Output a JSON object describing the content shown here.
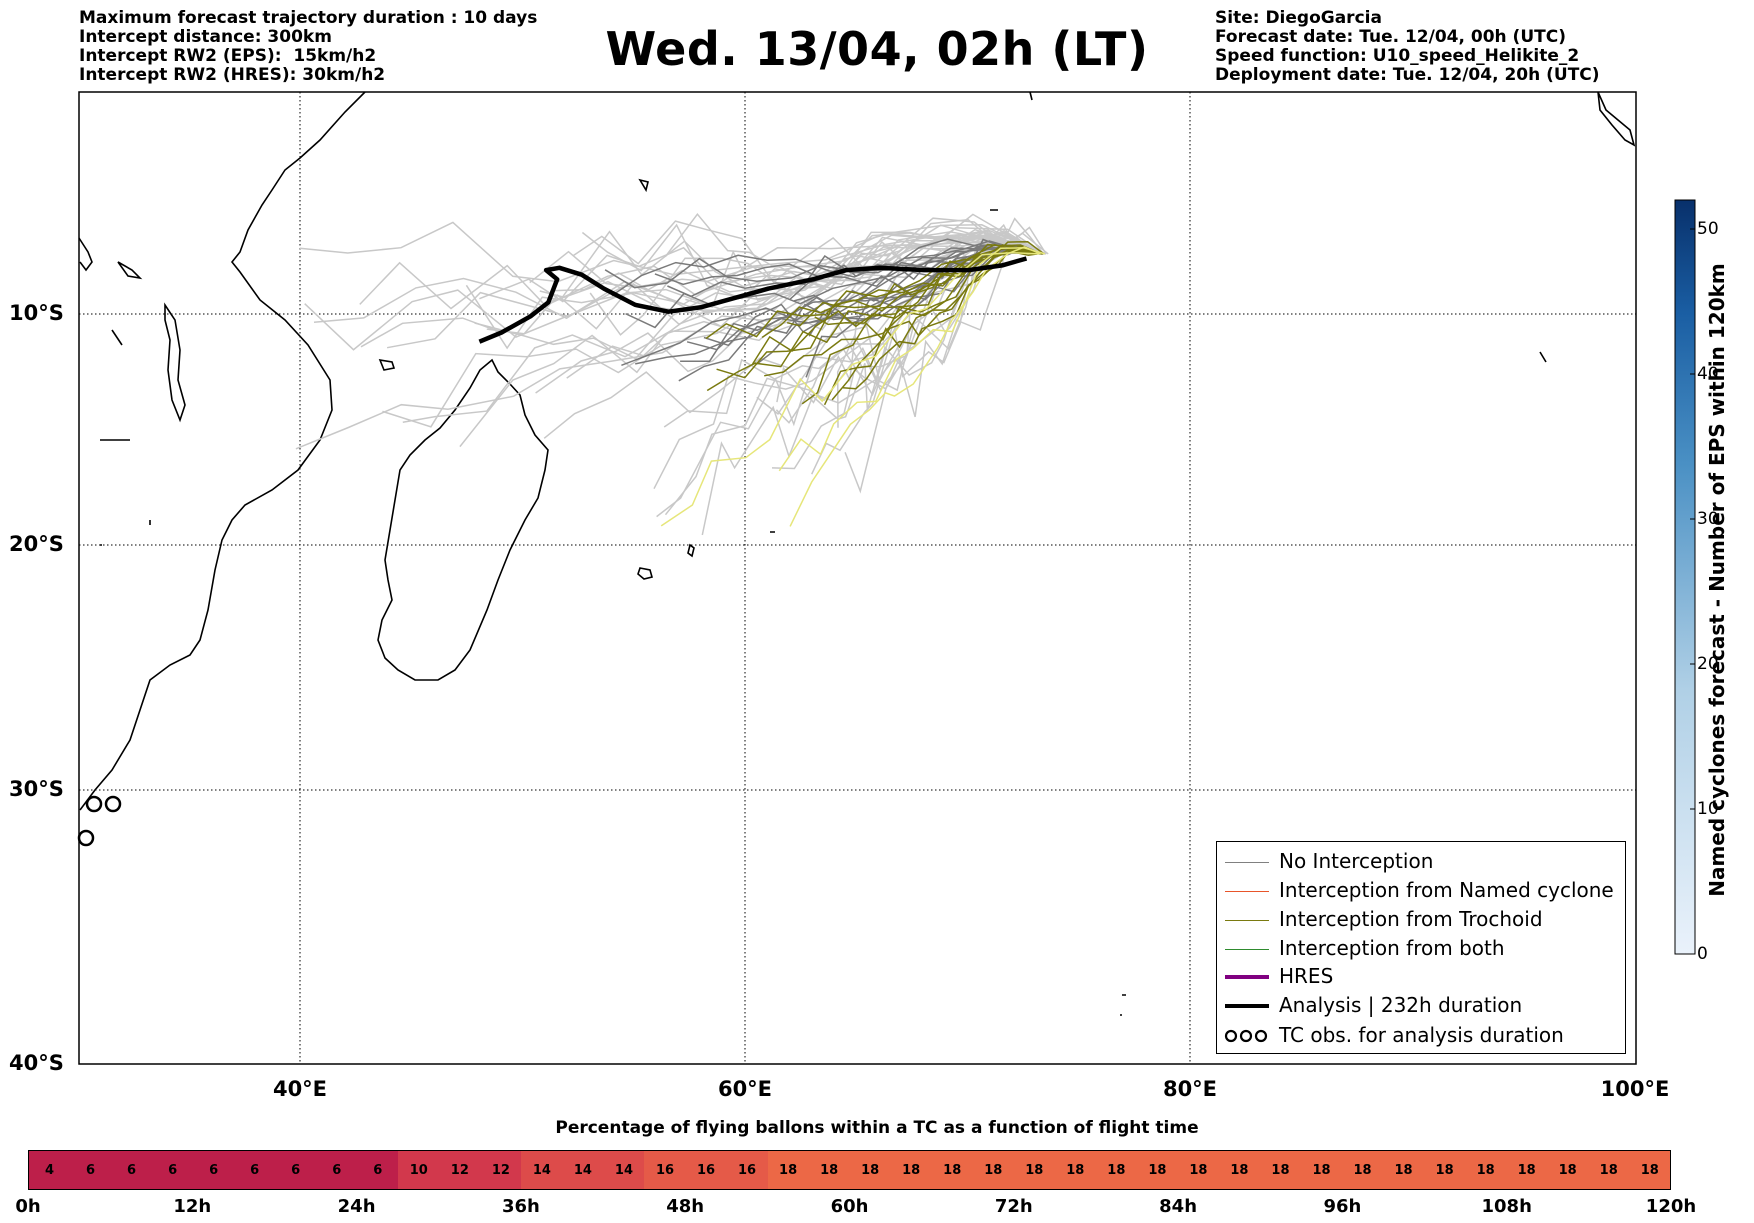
{
  "header": {
    "left_lines": [
      "Maximum forecast trajectory duration : 10 days",
      "Intercept distance: 300km",
      "Intercept RW2 (EPS):  15km/h2",
      "Intercept RW2 (HRES): 30km/h2"
    ],
    "title": "Wed. 13/04, 02h (LT)",
    "right_lines": [
      "Site: DiegoGarcia",
      "Forecast date: Tue. 12/04, 00h (UTC)",
      "Speed function: U10_speed_Helikite_2",
      "Deployment date: Tue. 12/04, 20h (UTC)"
    ]
  },
  "map": {
    "lat_labels": [
      "10°S",
      "20°S",
      "30°S",
      "40°S"
    ],
    "lon_labels": [
      "40°E",
      "60°E",
      "80°E",
      "100°E"
    ],
    "lon_range": [
      30,
      100
    ],
    "lat_range": [
      -40,
      -0.4
    ],
    "gridline_style": "dotted",
    "analysis_track": [
      [
        48,
        -11.2
      ],
      [
        49,
        -10.8
      ],
      [
        50.3,
        -10.1
      ],
      [
        51.1,
        -9.5
      ],
      [
        51.5,
        -8.5
      ],
      [
        51,
        -8.1
      ],
      [
        51.6,
        -8.0
      ],
      [
        52.6,
        -8.3
      ],
      [
        53.6,
        -8.9
      ],
      [
        55,
        -9.6
      ],
      [
        56.5,
        -9.9
      ],
      [
        58,
        -9.7
      ],
      [
        59.5,
        -9.3
      ],
      [
        61,
        -8.9
      ],
      [
        63,
        -8.5
      ],
      [
        64.5,
        -8.1
      ],
      [
        66,
        -8.0
      ],
      [
        68,
        -8.1
      ],
      [
        70,
        -8.1
      ],
      [
        71.5,
        -7.9
      ],
      [
        72.6,
        -7.6
      ]
    ]
  },
  "legend": {
    "items": [
      {
        "label": "No Interception",
        "color": "#808080",
        "style": "thin"
      },
      {
        "label": "Interception from Named cyclone",
        "color": "#e8552a",
        "style": "thin"
      },
      {
        "label": "Interception from Trochoid",
        "color": "#7a7a10",
        "style": "thin"
      },
      {
        "label": "Interception from both",
        "color": "#2e8b2e",
        "style": "thin"
      },
      {
        "label": "HRES",
        "color": "#800080",
        "style": "thick"
      },
      {
        "label": "Analysis | 232h duration",
        "color": "#000000",
        "style": "thick"
      },
      {
        "label": "TC obs. for analysis duration",
        "color": "#000000",
        "style": "symbol",
        "icon": "cyclone-symbols-icon"
      }
    ]
  },
  "colorbar": {
    "label": "Named cyclones forecast - Number of EPS within 120km",
    "ticks": [
      "0",
      "10",
      "20",
      "30",
      "40",
      "50"
    ],
    "range": [
      0,
      52
    ],
    "color_low": "#e8f1fa",
    "color_high": "#08306b"
  },
  "percentage_bar": {
    "title": "Percentage of flying ballons within a TC as a function of flight time",
    "values": [
      4,
      6,
      6,
      6,
      6,
      6,
      6,
      6,
      6,
      10,
      12,
      12,
      14,
      14,
      14,
      16,
      16,
      16,
      18,
      18,
      18,
      18,
      18,
      18,
      18,
      18,
      18,
      18,
      18,
      18,
      18,
      18,
      18,
      18,
      18,
      18,
      18,
      18,
      18,
      18
    ],
    "hour_labels": [
      "0h",
      "12h",
      "24h",
      "36h",
      "48h",
      "60h",
      "72h",
      "84h",
      "96h",
      "108h",
      "120h"
    ]
  }
}
